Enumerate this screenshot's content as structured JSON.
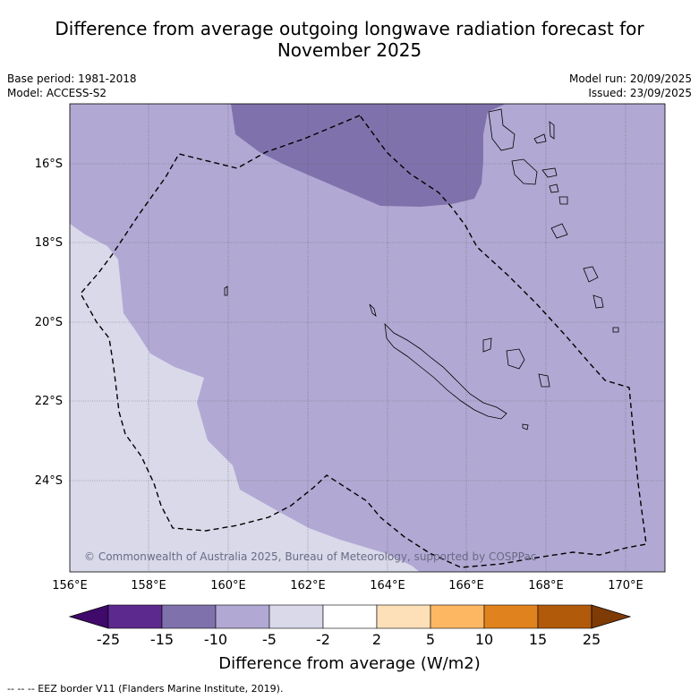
{
  "title": "Difference from average outgoing longwave radiation forecast for November 2025",
  "title_line1": "Difference from average outgoing longwave radiation forecast for",
  "title_line2": "November 2025",
  "base_period": "Base period: 1981-2018",
  "model": "Model: ACCESS-S2",
  "model_run": "Model run: 20/09/2025",
  "issued": "Issued: 23/09/2025",
  "copyright": "© Commonwealth of Australia 2025, Bureau of Meteorology, supported by COSPPac",
  "lat_labels": [
    "16°S",
    "18°S",
    "20°S",
    "22°S",
    "24°S"
  ],
  "lon_labels": [
    "156°E",
    "158°E",
    "160°E",
    "162°E",
    "164°E",
    "166°E",
    "168°E",
    "170°E"
  ],
  "colorbar": {
    "title": "Difference from average (W/m2)",
    "ticks": [
      "-25",
      "-15",
      "-10",
      "-5",
      "-2",
      "2",
      "5",
      "10",
      "15",
      "25"
    ],
    "colors": [
      "#3f0a6b",
      "#5c2a8e",
      "#7f72ac",
      "#b1a9d3",
      "#d9d9ea",
      "#ffffff",
      "#fde0b8",
      "#fdb763",
      "#e0821d",
      "#b15a0a",
      "#7f3b06"
    ]
  },
  "footer": "--  --  -- EEZ border V11 (Flanders Marine Institute, 2019).",
  "region_colors": {
    "dark": "#7f72ac",
    "medium": "#b1a9d3",
    "light": "#d9d9ea"
  }
}
